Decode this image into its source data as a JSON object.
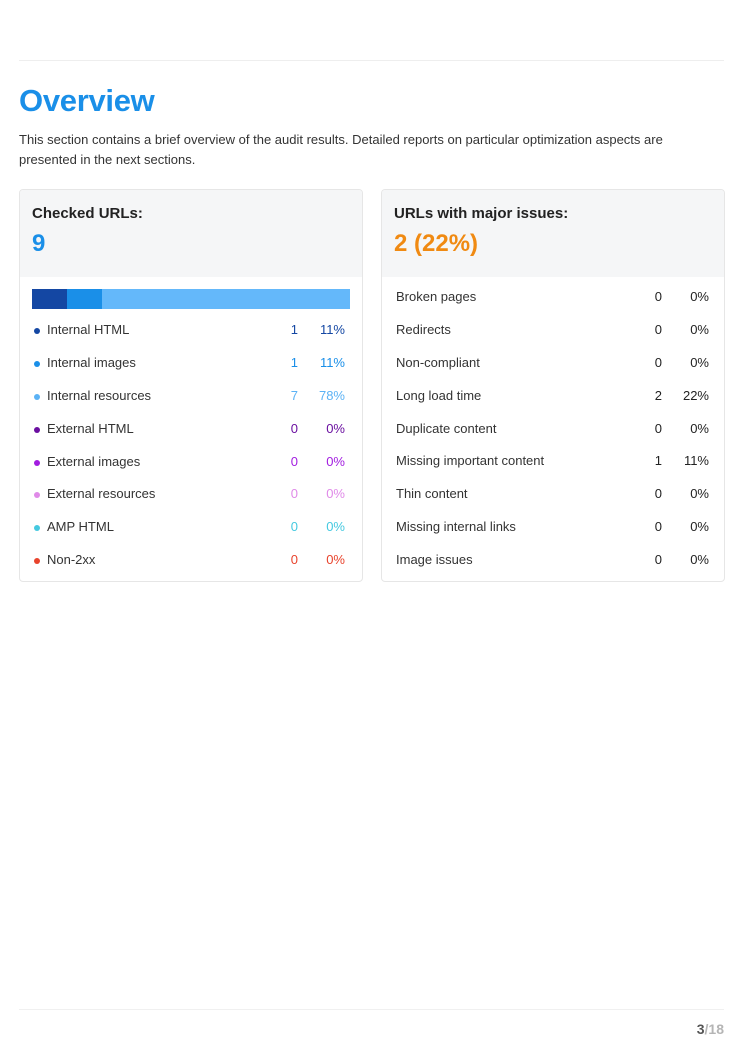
{
  "page": {
    "title": "Overview",
    "intro": "This section contains a brief overview of the audit results. Detailed reports on particular optimization aspects are presented in the next sections.",
    "page_current": "3",
    "page_total": "/18"
  },
  "checked": {
    "label": "Checked URLs:",
    "value": "9",
    "bar_segments": [
      {
        "name": "Internal HTML",
        "fraction": 0.11,
        "color": "#1447a3"
      },
      {
        "name": "Internal images",
        "fraction": 0.11,
        "color": "#1a8fe8"
      },
      {
        "name": "Internal resources",
        "fraction": 0.78,
        "color": "#64b8fa"
      }
    ],
    "rows": [
      {
        "label": "Internal HTML",
        "count": "1",
        "pct": "11%",
        "color": "#1447a3"
      },
      {
        "label": "Internal images",
        "count": "1",
        "pct": "11%",
        "color": "#1a8fe8"
      },
      {
        "label": "Internal resources",
        "count": "7",
        "pct": "78%",
        "color": "#5bb2f5"
      },
      {
        "label": "External HTML",
        "count": "0",
        "pct": "0%",
        "color": "#6a0fa0"
      },
      {
        "label": "External images",
        "count": "0",
        "pct": "0%",
        "color": "#a21de0"
      },
      {
        "label": "External resources",
        "count": "0",
        "pct": "0%",
        "color": "#e08ae8"
      },
      {
        "label": "AMP HTML",
        "count": "0",
        "pct": "0%",
        "color": "#45c9e0"
      },
      {
        "label": "Non-2xx",
        "count": "0",
        "pct": "0%",
        "color": "#e8432c"
      }
    ]
  },
  "major": {
    "label": "URLs with major issues:",
    "value": "2 (22%)",
    "rows": [
      {
        "label": "Broken pages",
        "count": "0",
        "pct": "0%"
      },
      {
        "label": "Redirects",
        "count": "0",
        "pct": "0%"
      },
      {
        "label": "Non-compliant",
        "count": "0",
        "pct": "0%"
      },
      {
        "label": "Long load time",
        "count": "2",
        "pct": "22%"
      },
      {
        "label": "Duplicate content",
        "count": "0",
        "pct": "0%"
      },
      {
        "label": "Missing important content",
        "count": "1",
        "pct": "11%"
      },
      {
        "label": "Thin content",
        "count": "0",
        "pct": "0%"
      },
      {
        "label": "Missing internal links",
        "count": "0",
        "pct": "0%"
      },
      {
        "label": "Image issues",
        "count": "0",
        "pct": "0%"
      }
    ]
  }
}
